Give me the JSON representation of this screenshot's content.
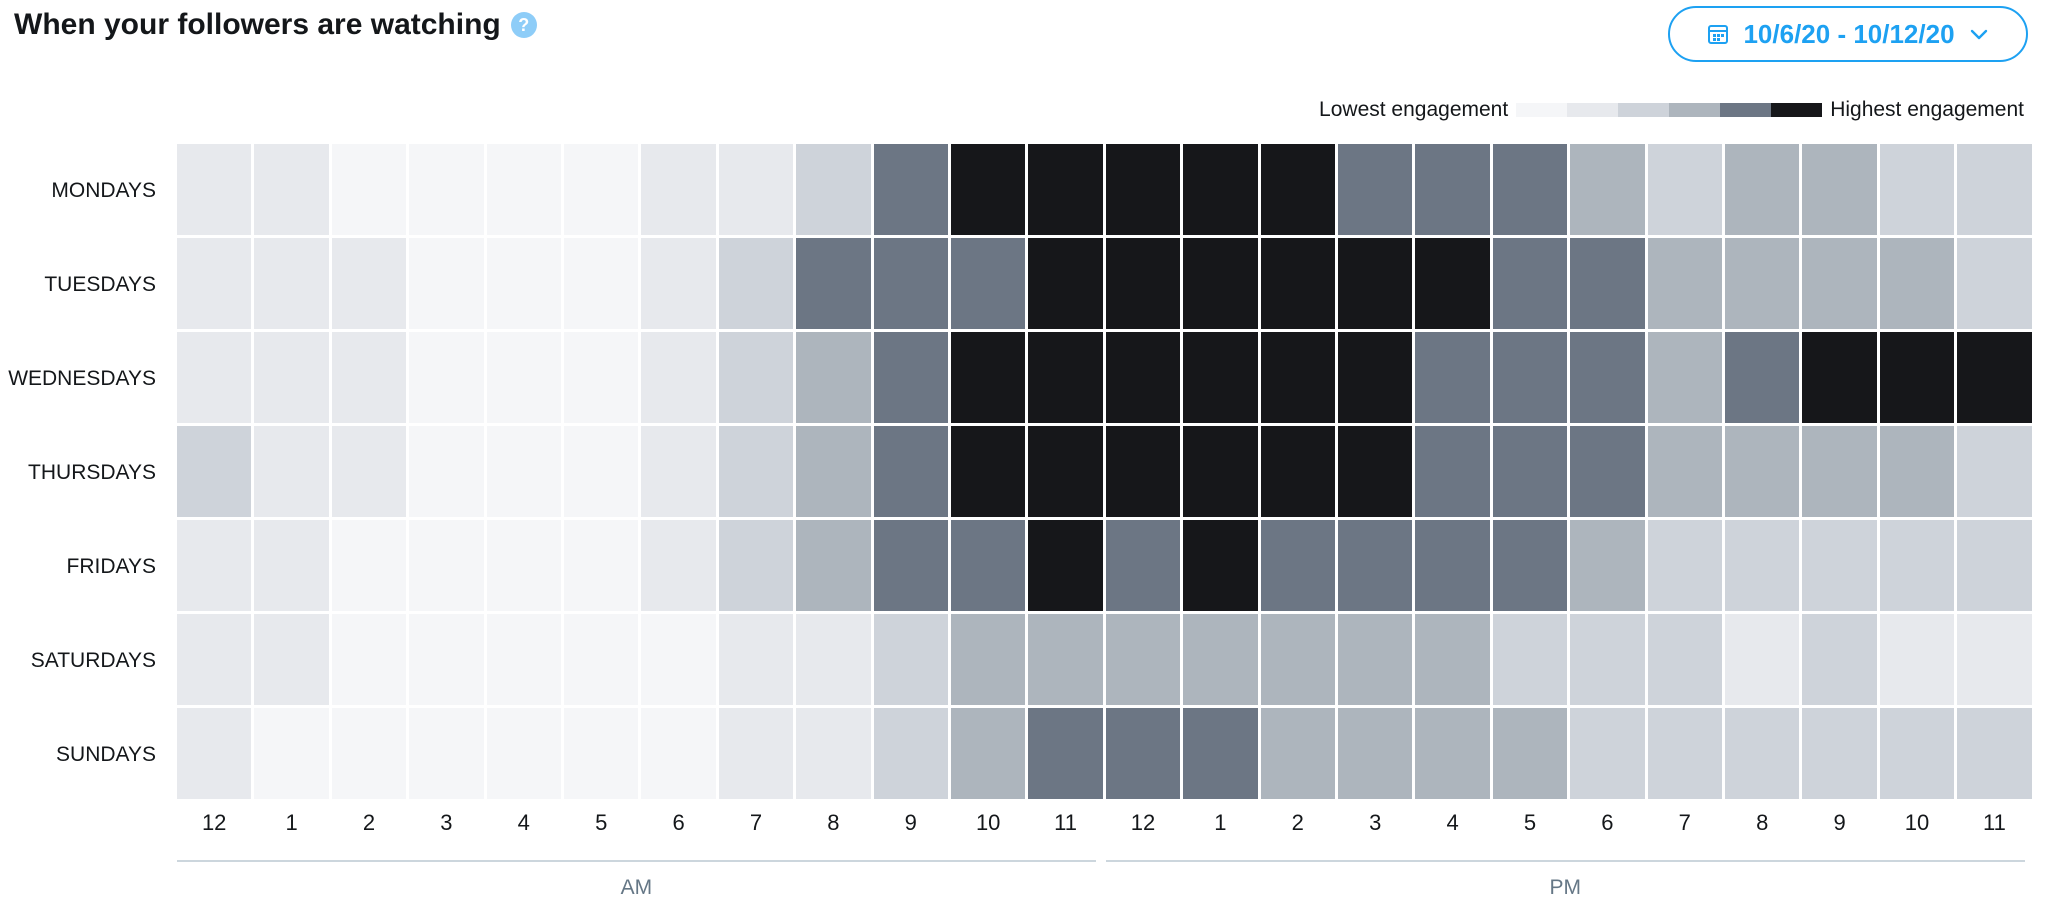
{
  "header": {
    "title": "When your followers are watching",
    "help_icon": "?",
    "date_range": "10/6/20 - 10/12/20"
  },
  "legend": {
    "low_label": "Lowest engagement",
    "high_label": "Highest engagement"
  },
  "colors": {
    "accent": "#1da1f2",
    "levels": [
      "#f5f6f8",
      "#e7e9ed",
      "#ced3da",
      "#adb5bd",
      "#6c7684",
      "#16171a"
    ]
  },
  "chart_data": {
    "type": "heatmap",
    "title": "When your followers are watching",
    "rows": [
      "MONDAYS",
      "TUESDAYS",
      "WEDNESDAYS",
      "THURSDAYS",
      "FRIDAYS",
      "SATURDAYS",
      "SUNDAYS"
    ],
    "columns": [
      "12",
      "1",
      "2",
      "3",
      "4",
      "5",
      "6",
      "7",
      "8",
      "9",
      "10",
      "11",
      "12",
      "1",
      "2",
      "3",
      "4",
      "5",
      "6",
      "7",
      "8",
      "9",
      "10",
      "11"
    ],
    "periods": [
      "AM",
      "PM"
    ],
    "scale": "0 = lowest engagement, 5 = highest engagement",
    "values": [
      [
        1,
        1,
        0,
        0,
        0,
        0,
        1,
        1,
        2,
        4,
        5,
        5,
        5,
        5,
        5,
        4,
        4,
        4,
        3,
        2,
        3,
        3,
        2,
        2
      ],
      [
        1,
        1,
        1,
        0,
        0,
        0,
        1,
        2,
        4,
        4,
        4,
        5,
        5,
        5,
        5,
        5,
        5,
        4,
        4,
        3,
        3,
        3,
        3,
        2
      ],
      [
        1,
        1,
        1,
        0,
        0,
        0,
        1,
        2,
        3,
        4,
        5,
        5,
        5,
        5,
        5,
        5,
        4,
        4,
        4,
        3,
        4,
        5,
        5,
        5
      ],
      [
        2,
        1,
        1,
        0,
        0,
        0,
        1,
        2,
        3,
        4,
        5,
        5,
        5,
        5,
        5,
        5,
        4,
        4,
        4,
        3,
        3,
        3,
        3,
        2
      ],
      [
        1,
        1,
        0,
        0,
        0,
        0,
        1,
        2,
        3,
        4,
        4,
        5,
        4,
        5,
        4,
        4,
        4,
        4,
        3,
        2,
        2,
        2,
        2,
        2
      ],
      [
        1,
        1,
        0,
        0,
        0,
        0,
        0,
        1,
        1,
        2,
        3,
        3,
        3,
        3,
        3,
        3,
        3,
        2,
        2,
        2,
        1,
        2,
        1,
        1
      ],
      [
        1,
        0,
        0,
        0,
        0,
        0,
        0,
        1,
        1,
        2,
        3,
        4,
        4,
        4,
        3,
        3,
        3,
        3,
        2,
        2,
        2,
        2,
        2,
        2
      ]
    ]
  }
}
